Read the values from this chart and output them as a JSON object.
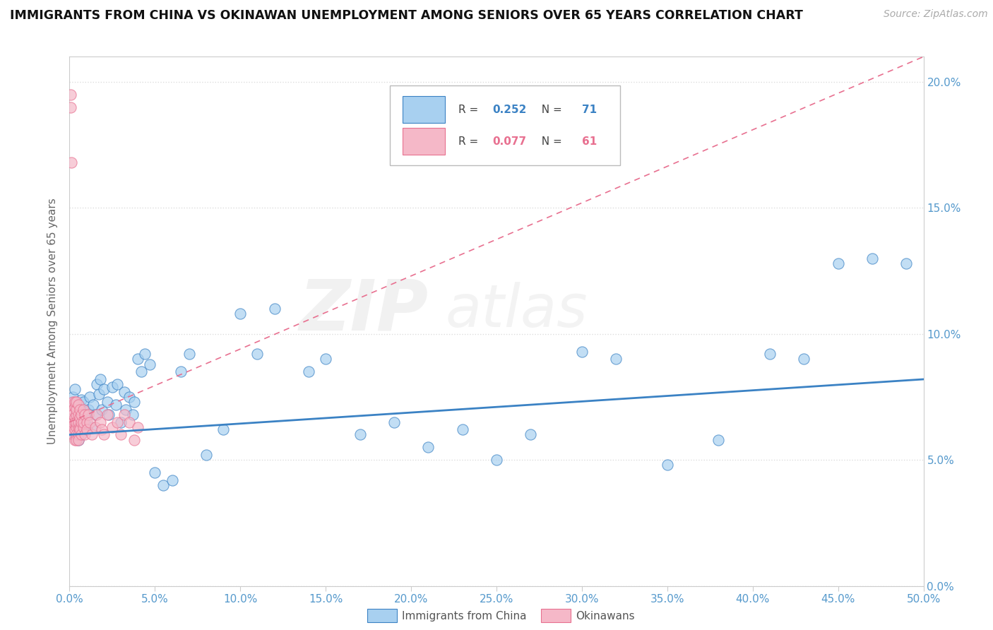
{
  "title": "IMMIGRANTS FROM CHINA VS OKINAWAN UNEMPLOYMENT AMONG SENIORS OVER 65 YEARS CORRELATION CHART",
  "source": "Source: ZipAtlas.com",
  "ylabel": "Unemployment Among Seniors over 65 years",
  "xlim": [
    0.0,
    0.5
  ],
  "ylim": [
    0.0,
    0.21
  ],
  "xticks": [
    0.0,
    0.05,
    0.1,
    0.15,
    0.2,
    0.25,
    0.3,
    0.35,
    0.4,
    0.45,
    0.5
  ],
  "yticks": [
    0.0,
    0.05,
    0.1,
    0.15,
    0.2
  ],
  "blue_color": "#a8d0f0",
  "pink_color": "#f5b8c8",
  "trend_blue": "#3b82c4",
  "trend_pink": "#e87090",
  "R_blue": 0.252,
  "N_blue": 71,
  "R_pink": 0.077,
  "N_pink": 61,
  "watermark_zip": "ZIP",
  "watermark_atlas": "atlas",
  "legend_blue": "Immigrants from China",
  "legend_pink": "Okinawans",
  "blue_scatter_x": [
    0.001,
    0.002,
    0.002,
    0.003,
    0.003,
    0.003,
    0.004,
    0.004,
    0.005,
    0.005,
    0.006,
    0.006,
    0.007,
    0.007,
    0.008,
    0.008,
    0.009,
    0.01,
    0.01,
    0.011,
    0.012,
    0.013,
    0.014,
    0.015,
    0.016,
    0.017,
    0.018,
    0.019,
    0.02,
    0.022,
    0.023,
    0.025,
    0.027,
    0.028,
    0.03,
    0.032,
    0.033,
    0.035,
    0.037,
    0.038,
    0.04,
    0.042,
    0.044,
    0.047,
    0.05,
    0.055,
    0.06,
    0.065,
    0.07,
    0.08,
    0.09,
    0.1,
    0.11,
    0.12,
    0.14,
    0.15,
    0.17,
    0.19,
    0.21,
    0.23,
    0.25,
    0.27,
    0.3,
    0.32,
    0.35,
    0.38,
    0.41,
    0.43,
    0.45,
    0.47,
    0.49
  ],
  "blue_scatter_y": [
    0.062,
    0.068,
    0.075,
    0.06,
    0.072,
    0.078,
    0.065,
    0.07,
    0.063,
    0.058,
    0.071,
    0.067,
    0.074,
    0.06,
    0.069,
    0.073,
    0.065,
    0.062,
    0.068,
    0.07,
    0.075,
    0.063,
    0.072,
    0.068,
    0.08,
    0.076,
    0.082,
    0.07,
    0.078,
    0.073,
    0.068,
    0.079,
    0.072,
    0.08,
    0.065,
    0.077,
    0.07,
    0.075,
    0.068,
    0.073,
    0.09,
    0.085,
    0.092,
    0.088,
    0.045,
    0.04,
    0.042,
    0.085,
    0.092,
    0.052,
    0.062,
    0.108,
    0.092,
    0.11,
    0.085,
    0.09,
    0.06,
    0.065,
    0.055,
    0.062,
    0.05,
    0.06,
    0.093,
    0.09,
    0.048,
    0.058,
    0.092,
    0.09,
    0.128,
    0.13,
    0.128
  ],
  "pink_scatter_x": [
    0.0005,
    0.0005,
    0.001,
    0.001,
    0.001,
    0.0015,
    0.0015,
    0.002,
    0.002,
    0.002,
    0.002,
    0.002,
    0.003,
    0.003,
    0.003,
    0.003,
    0.003,
    0.003,
    0.004,
    0.004,
    0.004,
    0.004,
    0.004,
    0.004,
    0.004,
    0.005,
    0.005,
    0.005,
    0.005,
    0.005,
    0.005,
    0.006,
    0.006,
    0.006,
    0.006,
    0.007,
    0.007,
    0.007,
    0.008,
    0.008,
    0.008,
    0.009,
    0.009,
    0.01,
    0.01,
    0.011,
    0.012,
    0.013,
    0.015,
    0.016,
    0.018,
    0.019,
    0.02,
    0.022,
    0.025,
    0.028,
    0.03,
    0.032,
    0.035,
    0.038,
    0.04
  ],
  "pink_scatter_y": [
    0.195,
    0.19,
    0.168,
    0.063,
    0.068,
    0.062,
    0.072,
    0.065,
    0.07,
    0.06,
    0.068,
    0.073,
    0.062,
    0.067,
    0.065,
    0.071,
    0.058,
    0.073,
    0.063,
    0.068,
    0.065,
    0.07,
    0.06,
    0.058,
    0.073,
    0.063,
    0.068,
    0.065,
    0.06,
    0.072,
    0.058,
    0.063,
    0.067,
    0.07,
    0.062,
    0.065,
    0.06,
    0.068,
    0.063,
    0.07,
    0.065,
    0.06,
    0.068,
    0.065,
    0.062,
    0.068,
    0.065,
    0.06,
    0.063,
    0.068,
    0.065,
    0.062,
    0.06,
    0.068,
    0.063,
    0.065,
    0.06,
    0.068,
    0.065,
    0.058,
    0.063
  ],
  "blue_trend_x": [
    0.0,
    0.5
  ],
  "blue_trend_y": [
    0.06,
    0.082
  ],
  "pink_trend_x": [
    0.0,
    0.5
  ],
  "pink_trend_y": [
    0.065,
    0.21
  ]
}
